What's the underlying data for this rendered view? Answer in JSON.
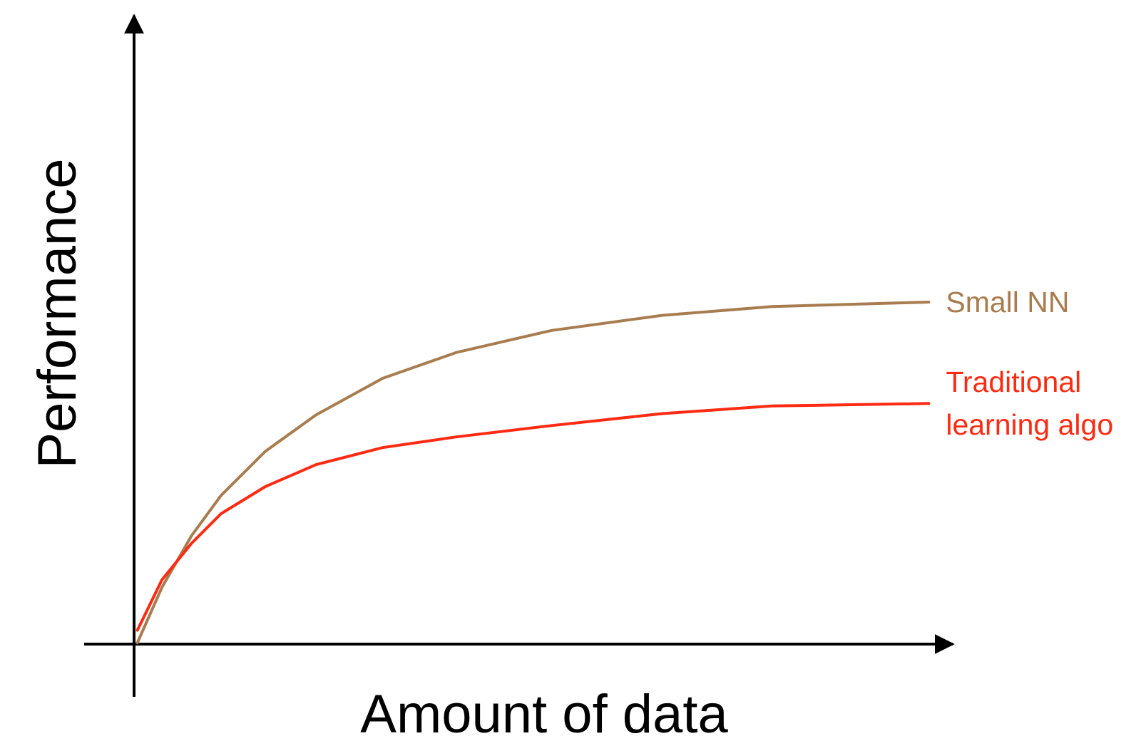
{
  "chart_data": {
    "type": "line",
    "x_label": "Amount of data",
    "y_label": "Performance",
    "x": [
      0.4,
      3.4,
      7.0,
      10.6,
      16.0,
      22.2,
      30.3,
      39.3,
      50.9,
      64.4,
      77.8,
      96.9
    ],
    "xlim": [
      0,
      100
    ],
    "ylim": [
      0,
      100
    ],
    "series": [
      {
        "name": "Small NN",
        "color": "#a87c4f",
        "values": [
          0.2,
          9.0,
          17.2,
          23.6,
          30.6,
          36.4,
          42.2,
          46.3,
          49.8,
          52.2,
          53.6,
          54.3
        ]
      },
      {
        "name": "Traditional learning algo",
        "color": "#ff2a12",
        "values": [
          2.2,
          10.2,
          16.0,
          20.7,
          25.0,
          28.5,
          31.2,
          32.9,
          34.7,
          36.6,
          37.8,
          38.2
        ]
      }
    ]
  }
}
